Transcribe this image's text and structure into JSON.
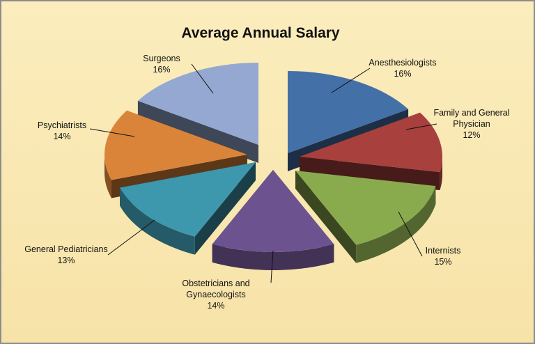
{
  "chart_data": {
    "type": "pie",
    "title": "Average Annual Salary",
    "colors": {
      "background": "#F9E9B4",
      "frame": "#8C8C8C"
    },
    "slices": [
      {
        "label_lines": [
          "Anesthesiologists"
        ],
        "pct_label": "16%",
        "value": 16,
        "color": "#4470A8"
      },
      {
        "label_lines": [
          "Family and General",
          "Physician"
        ],
        "pct_label": "12%",
        "value": 12,
        "color": "#A8403E"
      },
      {
        "label_lines": [
          "Internists"
        ],
        "pct_label": "15%",
        "value": 15,
        "color": "#8AAA4E"
      },
      {
        "label_lines": [
          "Obstetricians and",
          "Gynaecologists"
        ],
        "pct_label": "14%",
        "value": 14,
        "color": "#6C5390"
      },
      {
        "label_lines": [
          "General Pediatricians"
        ],
        "pct_label": "13%",
        "value": 13,
        "color": "#3D97AD"
      },
      {
        "label_lines": [
          "Psychiatrists"
        ],
        "pct_label": "14%",
        "value": 14,
        "color": "#DA843A"
      },
      {
        "label_lines": [
          "Surgeons"
        ],
        "pct_label": "16%",
        "value": 16,
        "color": "#94A8D2"
      }
    ]
  }
}
